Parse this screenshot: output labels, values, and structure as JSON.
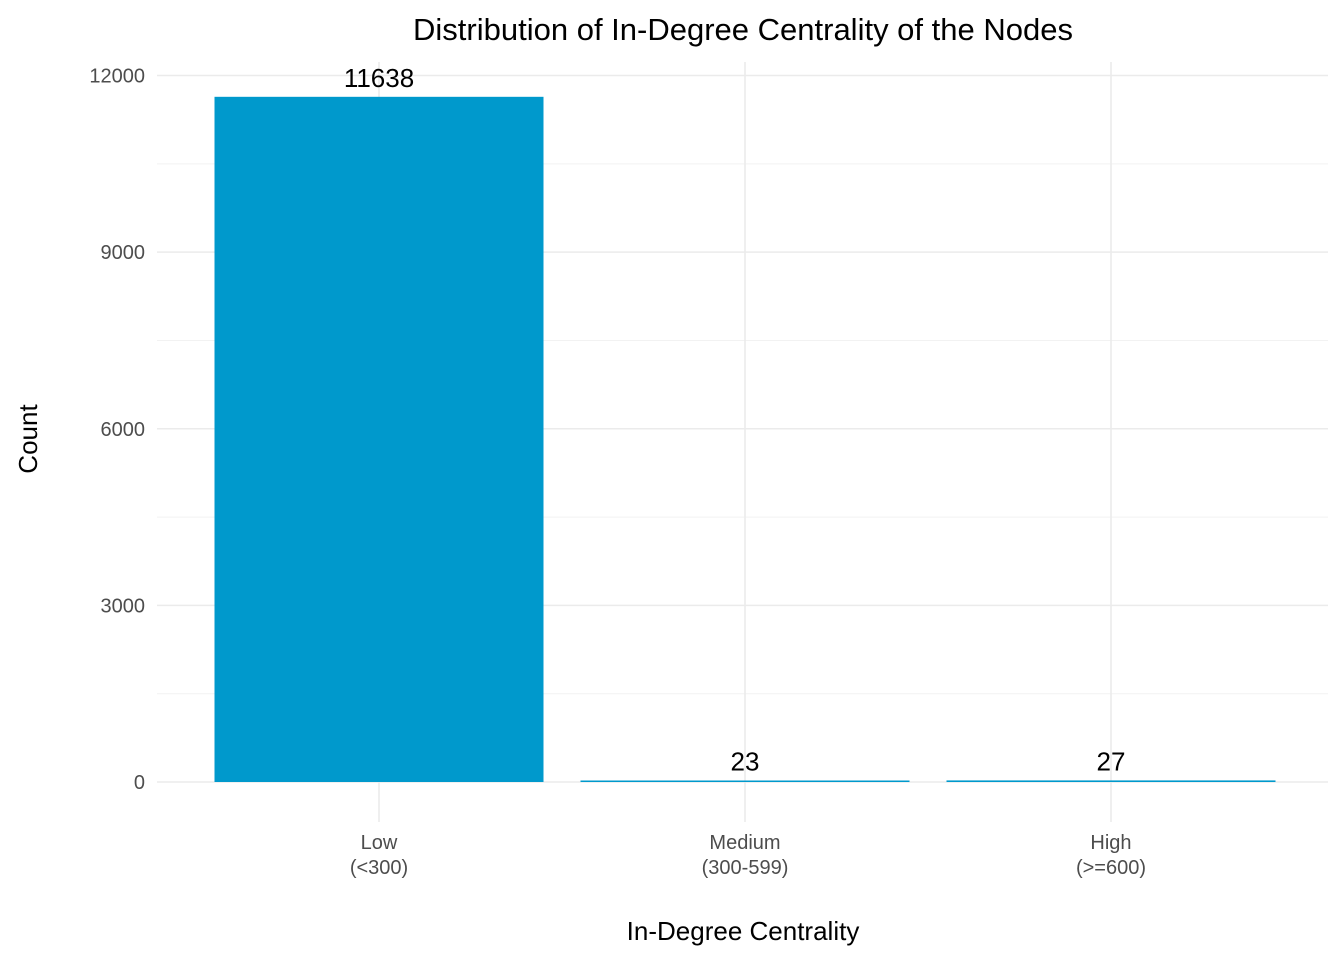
{
  "chart_data": {
    "type": "bar",
    "title": "Distribution of In-Degree Centrality of the Nodes",
    "xlabel": "In-Degree Centrality",
    "ylabel": "Count",
    "categories": [
      [
        "Low",
        "(<300)"
      ],
      [
        "Medium",
        "(300-599)"
      ],
      [
        "High",
        "(>=600)"
      ]
    ],
    "values": [
      11638,
      23,
      27
    ],
    "ylim": [
      0,
      12000
    ],
    "yticks": [
      0,
      3000,
      6000,
      9000,
      12000
    ],
    "grid": true,
    "legend": "none",
    "bar_color": "#0099cc"
  }
}
